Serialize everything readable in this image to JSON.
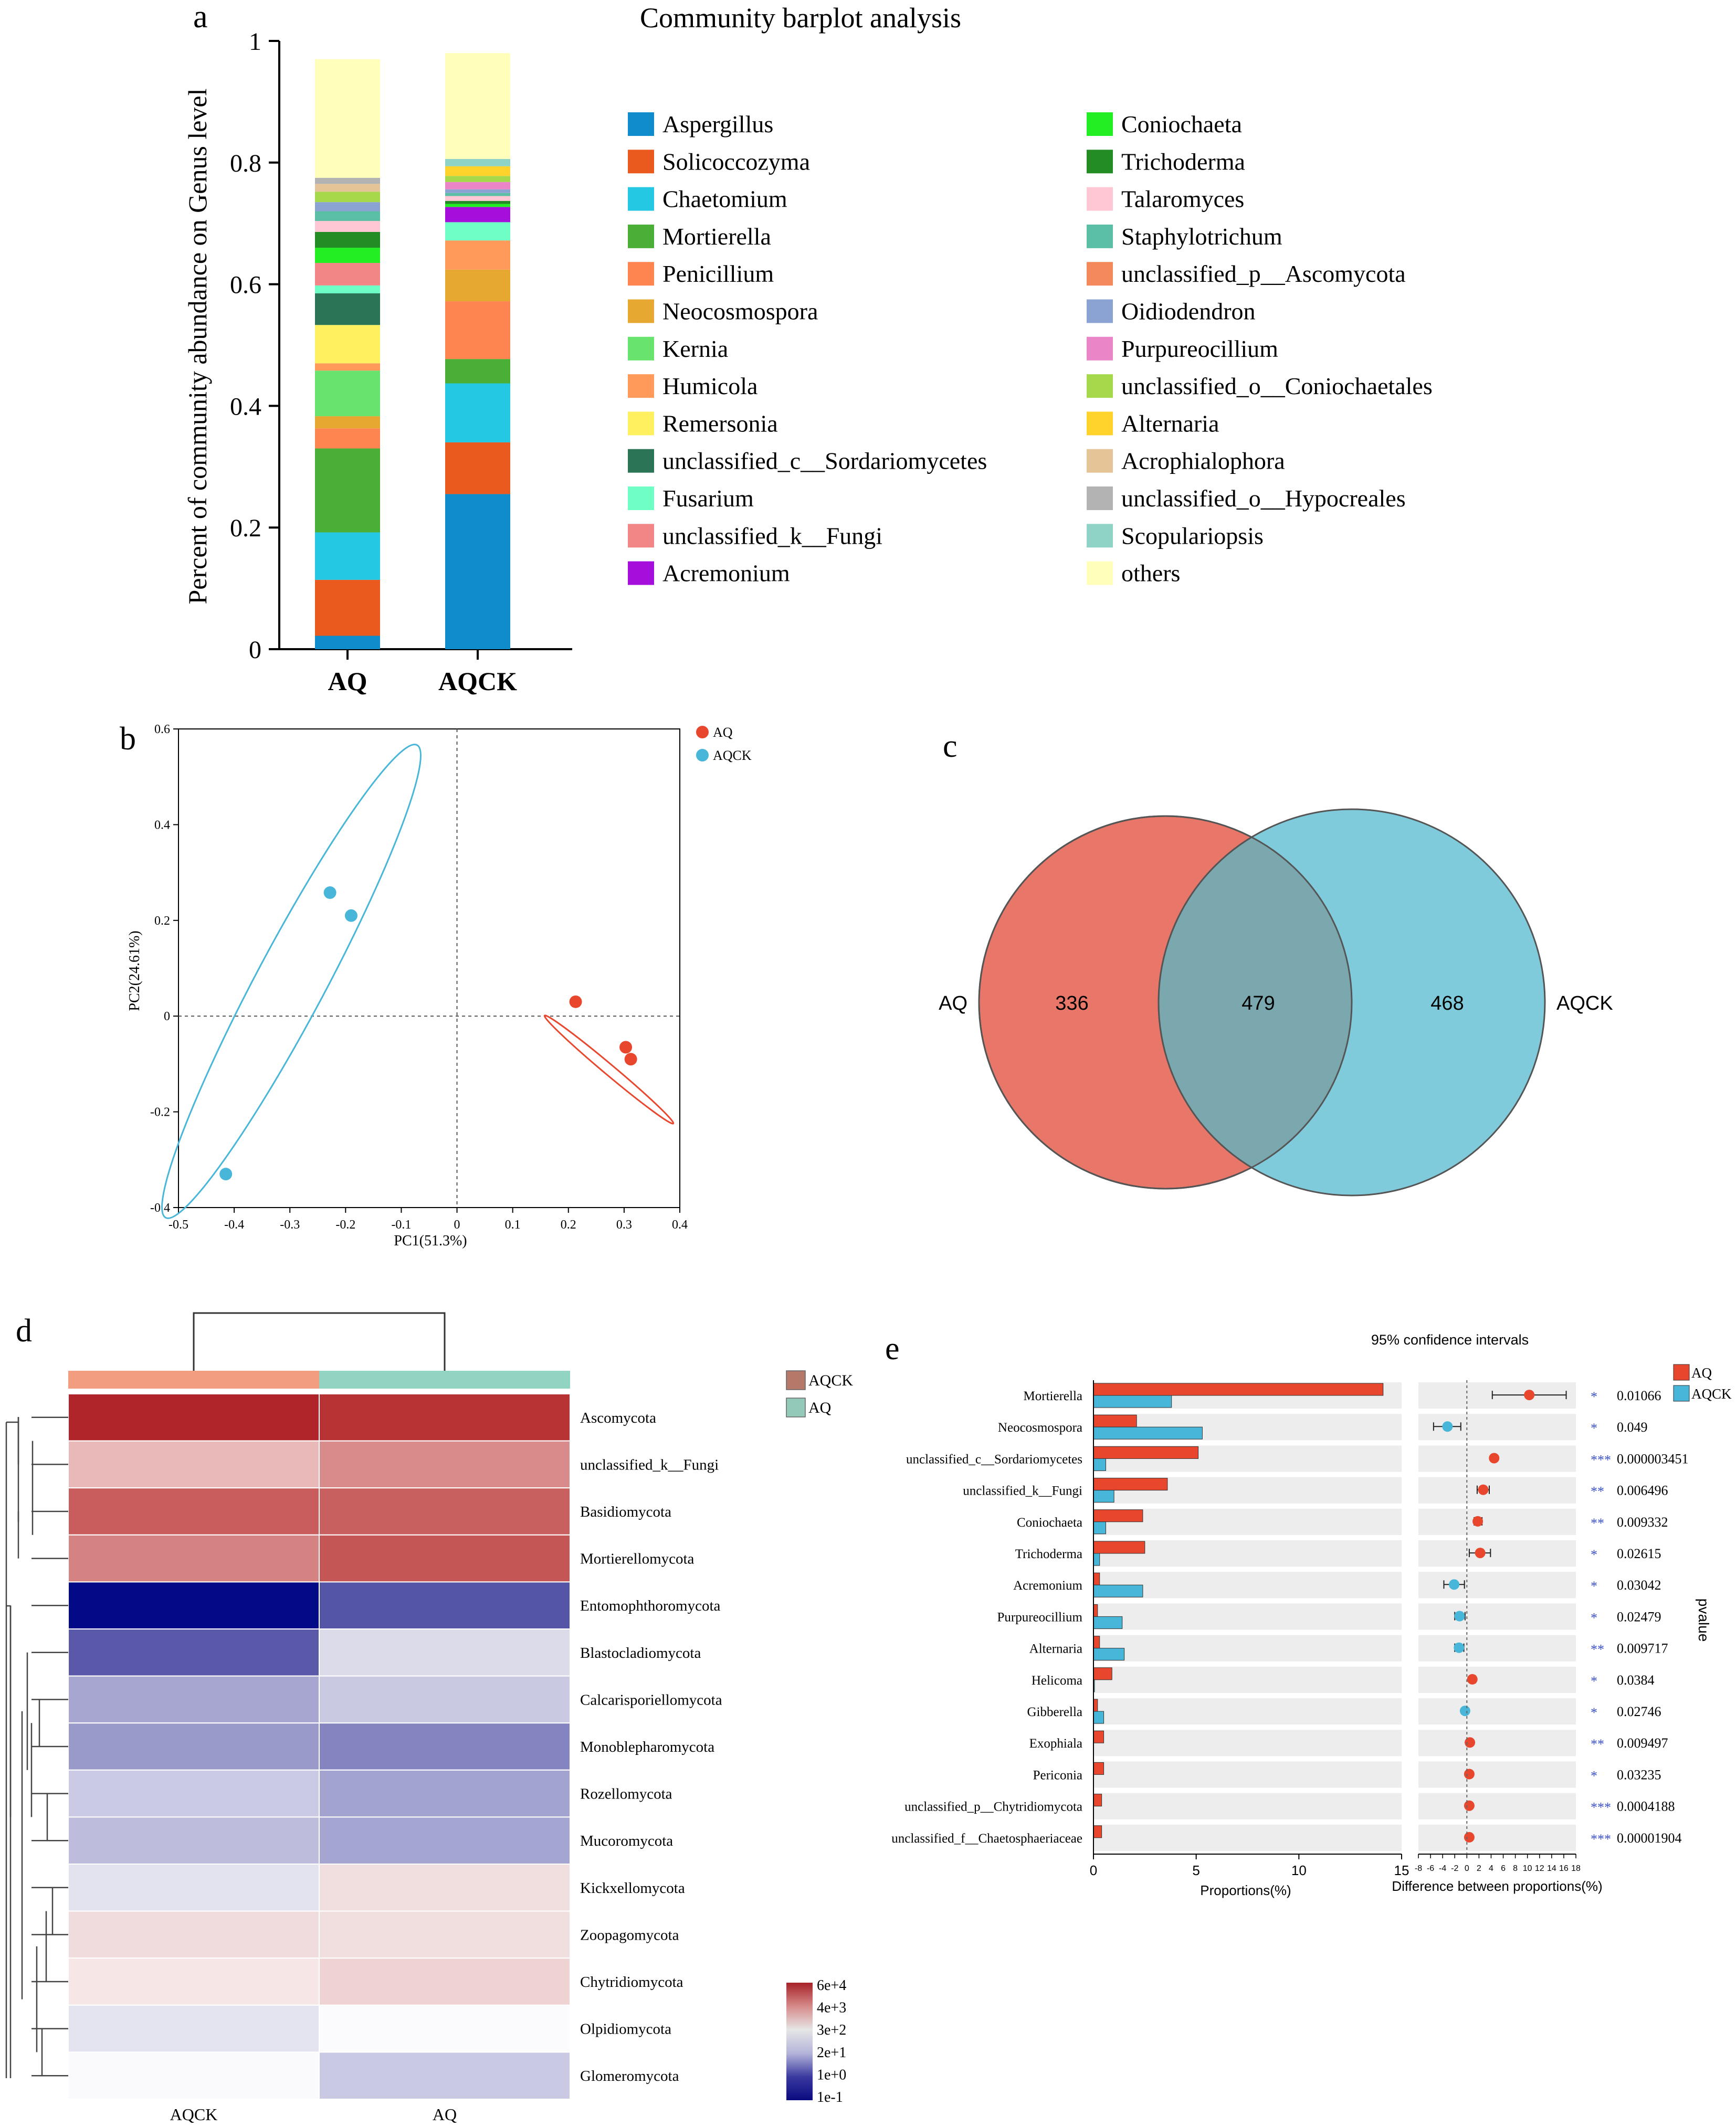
{
  "panels": [
    {
      "letter": "a"
    },
    {
      "letter": "b"
    },
    {
      "letter": "c"
    },
    {
      "letter": "d"
    },
    {
      "letter": "e"
    }
  ],
  "chart_data": [
    {
      "id": "a",
      "type": "bar",
      "stacked": true,
      "title": "Community barplot analysis",
      "ylabel": "Percent of community abundance on Genus level",
      "xlabel": "",
      "ylim": [
        0,
        1
      ],
      "yticks": [
        "0",
        "0.2",
        "0.4",
        "0.6",
        "0.8",
        "1"
      ],
      "categories": [
        "AQ",
        "AQCK"
      ],
      "series": [
        {
          "name": "Aspergillus",
          "color": "#0e8ccb",
          "values": [
            0.022,
            0.255
          ]
        },
        {
          "name": "Solicoccozyma",
          "color": "#ea5a1e",
          "values": [
            0.092,
            0.085
          ]
        },
        {
          "name": "Chaetomium",
          "color": "#24c8e3",
          "values": [
            0.078,
            0.097
          ]
        },
        {
          "name": "Mortierella",
          "color": "#4aaf37",
          "values": [
            0.138,
            0.04
          ]
        },
        {
          "name": "Penicillium",
          "color": "#ff8550",
          "values": [
            0.033,
            0.095
          ]
        },
        {
          "name": "Neocosmospora",
          "color": "#e7a832",
          "values": [
            0.02,
            0.052
          ]
        },
        {
          "name": "Kernia",
          "color": "#67e36e",
          "values": [
            0.075,
            0.0
          ]
        },
        {
          "name": "Humicola",
          "color": "#ff9a5a",
          "values": [
            0.012,
            0.048
          ]
        },
        {
          "name": "Remersonia",
          "color": "#fff060",
          "values": [
            0.063,
            0.0
          ]
        },
        {
          "name": "unclassified_c__Sordariomycetes",
          "color": "#2b7556",
          "values": [
            0.052,
            0.0
          ]
        },
        {
          "name": "Fusarium",
          "color": "#6dffc4",
          "values": [
            0.013,
            0.03
          ]
        },
        {
          "name": "unclassified_k__Fungi",
          "color": "#f28686",
          "values": [
            0.037,
            0.0
          ]
        },
        {
          "name": "Acremonium",
          "color": "#a40fdb",
          "values": [
            0.0,
            0.025
          ]
        },
        {
          "name": "Coniochaeta",
          "color": "#23ee23",
          "values": [
            0.025,
            0.005
          ]
        },
        {
          "name": "Trichoderma",
          "color": "#248c24",
          "values": [
            0.026,
            0.005
          ]
        },
        {
          "name": "Talaromyces",
          "color": "#ffc7d3",
          "values": [
            0.018,
            0.008
          ]
        },
        {
          "name": "Staphylotrichum",
          "color": "#5bbfa6",
          "values": [
            0.016,
            0.005
          ]
        },
        {
          "name": "unclassified_p__Ascomycota",
          "color": "#f48a5c",
          "values": [
            0.0,
            0.0
          ]
        },
        {
          "name": "Oidiodendron",
          "color": "#8ba3d2",
          "values": [
            0.015,
            0.006
          ]
        },
        {
          "name": "Purpureocillium",
          "color": "#ea85c8",
          "values": [
            0.0,
            0.012
          ]
        },
        {
          "name": "unclassified_o__Coniochaetales",
          "color": "#a6d84c",
          "values": [
            0.017,
            0.01
          ]
        },
        {
          "name": "Alternaria",
          "color": "#ffd22c",
          "values": [
            0.0,
            0.016
          ]
        },
        {
          "name": "Acrophialophora",
          "color": "#e5c498",
          "values": [
            0.013,
            0.0
          ]
        },
        {
          "name": "unclassified_o__Hypocreales",
          "color": "#b3b3b3",
          "values": [
            0.01,
            0.0
          ]
        },
        {
          "name": "Scopulariopsis",
          "color": "#8fd3c7",
          "values": [
            0.0,
            0.012
          ]
        },
        {
          "name": "others",
          "color": "#ffffbb",
          "values": [
            0.195,
            0.174
          ]
        }
      ]
    },
    {
      "id": "b",
      "type": "scatter",
      "xlabel": "PC1(51.3%)",
      "ylabel": "PC2(24.61%)",
      "xlim": [
        -0.5,
        0.4
      ],
      "ylim": [
        -0.4,
        0.6
      ],
      "xticks": [
        "-0.5",
        "-0.4",
        "-0.3",
        "-0.2",
        "-0.1",
        "0",
        "0.1",
        "0.2",
        "0.3",
        "0.4"
      ],
      "yticks": [
        "-0.4",
        "-0.2",
        "0",
        "0.2",
        "0.4",
        "0.6"
      ],
      "series": [
        {
          "name": "AQ",
          "color": "#e8472e",
          "points": [
            [
              0.213,
              0.03
            ],
            [
              0.303,
              -0.065
            ],
            [
              0.312,
              -0.09
            ]
          ]
        },
        {
          "name": "AQCK",
          "color": "#48b6d8",
          "points": [
            [
              -0.228,
              0.258
            ],
            [
              -0.19,
              0.21
            ],
            [
              -0.415,
              -0.33
            ]
          ]
        }
      ]
    },
    {
      "id": "c",
      "type": "venn",
      "sets": [
        {
          "name": "AQ",
          "only": "336",
          "color": "#e8776a"
        },
        {
          "name": "AQCK",
          "only": "468",
          "color": "#7fcbdc"
        }
      ],
      "shared": "479"
    },
    {
      "id": "d",
      "type": "heatmap",
      "columns": [
        {
          "name": "AQCK",
          "color": "#f39d80"
        },
        {
          "name": "AQ",
          "color": "#92d4c2"
        }
      ],
      "legend_groups": [
        {
          "name": "AQCK",
          "color": "#b5796a"
        },
        {
          "name": "AQ",
          "color": "#92c9b9"
        }
      ],
      "rows": [
        {
          "name": "Ascomycota",
          "colors": [
            "#b0252a",
            "#b83334"
          ]
        },
        {
          "name": "unclassified_k__Fungi",
          "colors": [
            "#e9b9b9",
            "#d98a8a"
          ]
        },
        {
          "name": "Basidiomycota",
          "colors": [
            "#c95d5d",
            "#c96060"
          ]
        },
        {
          "name": "Mortierellomycota",
          "colors": [
            "#d48282",
            "#c45656"
          ]
        },
        {
          "name": "Entomophthoromycota",
          "colors": [
            "#020a87",
            "#5555a8"
          ]
        },
        {
          "name": "Blastocladiomycota",
          "colors": [
            "#5a59a9",
            "#dbdbe9"
          ]
        },
        {
          "name": "Calcarisporiellomycota",
          "colors": [
            "#a6a6d0",
            "#c9c9e2"
          ]
        },
        {
          "name": "Monoblepharomycota",
          "colors": [
            "#9a9aca",
            "#8484c0"
          ]
        },
        {
          "name": "Rozellomycota",
          "colors": [
            "#cbcae4",
            "#a3a3d0"
          ]
        },
        {
          "name": "Mucoromycota",
          "colors": [
            "#bdbcdc",
            "#a5a5d2"
          ]
        },
        {
          "name": "Kickxellomycota",
          "colors": [
            "#e3e3f0",
            "#f1dede"
          ]
        },
        {
          "name": "Zoopagomycota",
          "colors": [
            "#f0dcdc",
            "#f1dfdf"
          ]
        },
        {
          "name": "Chytridiomycota",
          "colors": [
            "#f6e6e6",
            "#efd2d2"
          ]
        },
        {
          "name": "Olpidiomycota",
          "colors": [
            "#e4e4f0",
            "#fbfbfd"
          ]
        },
        {
          "name": "Glomeromycota",
          "colors": [
            "#fafafc",
            "#c9c9e3"
          ]
        }
      ],
      "colorbar": {
        "labels": [
          "6e+4",
          "4e+3",
          "3e+2",
          "2e+1",
          "1e+0",
          "1e-1"
        ],
        "colors": [
          "#a62228",
          "#d68a8a",
          "#e6e6e6",
          "#b4b4da",
          "#3b3aa0",
          "#0a0a80"
        ]
      }
    },
    {
      "id": "e",
      "type": "bar",
      "orientation": "horizontal",
      "title": "95% confidence intervals",
      "xlabel": "Proportions(%)",
      "xlim": [
        0,
        15
      ],
      "xticks": [
        "0",
        "5",
        "10",
        "15"
      ],
      "diff_xlabel": "Difference between proportions(%)",
      "diff_xlim": [
        -8,
        18
      ],
      "diff_xticks": [
        "-8",
        "-6",
        "-4",
        "-2",
        "0",
        "2",
        "4",
        "6",
        "8",
        "10",
        "12",
        "14",
        "16",
        "18"
      ],
      "pvalue_label": "pvalue",
      "series": [
        {
          "name": "AQ",
          "color": "#e8472e"
        },
        {
          "name": "AQCK",
          "color": "#48b6d8"
        }
      ],
      "rows": [
        {
          "name": "Mortierella",
          "aq": 14.1,
          "aqck": 3.8,
          "diff": 10.3,
          "lo": 4.2,
          "hi": 16.4,
          "stars": "*",
          "p": "0.01066"
        },
        {
          "name": "Neocosmospora",
          "aq": 2.1,
          "aqck": 5.3,
          "diff": -3.2,
          "lo": -5.5,
          "hi": -1.0,
          "stars": "*",
          "p": "0.049"
        },
        {
          "name": "unclassified_c__Sordariomycetes",
          "aq": 5.1,
          "aqck": 0.6,
          "diff": 4.5,
          "lo": 4.1,
          "hi": 4.9,
          "stars": "***",
          "p": "0.000003451"
        },
        {
          "name": "unclassified_k__Fungi",
          "aq": 3.6,
          "aqck": 1.0,
          "diff": 2.7,
          "lo": 1.7,
          "hi": 3.7,
          "stars": "**",
          "p": "0.006496"
        },
        {
          "name": "Coniochaeta",
          "aq": 2.4,
          "aqck": 0.6,
          "diff": 1.8,
          "lo": 1.2,
          "hi": 2.5,
          "stars": "**",
          "p": "0.009332"
        },
        {
          "name": "Trichoderma",
          "aq": 2.5,
          "aqck": 0.3,
          "diff": 2.2,
          "lo": 0.4,
          "hi": 3.9,
          "stars": "*",
          "p": "0.02615"
        },
        {
          "name": "Acremonium",
          "aq": 0.3,
          "aqck": 2.4,
          "diff": -2.1,
          "lo": -3.8,
          "hi": -0.4,
          "stars": "*",
          "p": "0.03042"
        },
        {
          "name": "Purpureocillium",
          "aq": 0.2,
          "aqck": 1.4,
          "diff": -1.2,
          "lo": -2.0,
          "hi": -0.3,
          "stars": "*",
          "p": "0.02479"
        },
        {
          "name": "Alternaria",
          "aq": 0.3,
          "aqck": 1.5,
          "diff": -1.3,
          "lo": -2.0,
          "hi": -0.5,
          "stars": "**",
          "p": "0.009717"
        },
        {
          "name": "Helicoma",
          "aq": 0.9,
          "aqck": 0.05,
          "diff": 0.9,
          "lo": 0.5,
          "hi": 1.4,
          "stars": "*",
          "p": "0.0384"
        },
        {
          "name": "Gibberella",
          "aq": 0.2,
          "aqck": 0.5,
          "diff": -0.3,
          "lo": -0.6,
          "hi": -0.05,
          "stars": "*",
          "p": "0.02746"
        },
        {
          "name": "Exophiala",
          "aq": 0.5,
          "aqck": 0.0,
          "diff": 0.5,
          "lo": 0.2,
          "hi": 0.8,
          "stars": "**",
          "p": "0.009497"
        },
        {
          "name": "Periconia",
          "aq": 0.5,
          "aqck": 0.0,
          "diff": 0.4,
          "lo": 0.1,
          "hi": 0.7,
          "stars": "*",
          "p": "0.03235"
        },
        {
          "name": "unclassified_p__Chytridiomycota",
          "aq": 0.4,
          "aqck": 0.0,
          "diff": 0.4,
          "lo": 0.3,
          "hi": 0.5,
          "stars": "***",
          "p": "0.0004188"
        },
        {
          "name": "unclassified_f__Chaetosphaeriaceae",
          "aq": 0.4,
          "aqck": 0.0,
          "diff": 0.4,
          "lo": 0.3,
          "hi": 0.5,
          "stars": "***",
          "p": "0.00001904"
        }
      ]
    }
  ]
}
